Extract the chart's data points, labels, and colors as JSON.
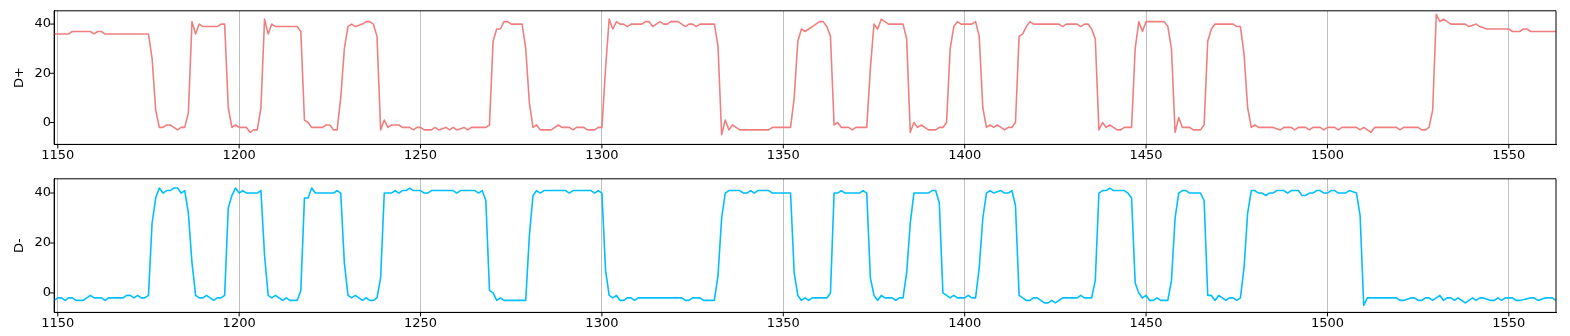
{
  "chart_data": [
    {
      "type": "line",
      "ylabel": "D+",
      "xlim": [
        1149,
        1563
      ],
      "ylim": [
        -8.9,
        45.4
      ],
      "xticks": [
        1150,
        1200,
        1250,
        1300,
        1350,
        1400,
        1450,
        1500,
        1550
      ],
      "yticks": [
        0,
        20,
        40
      ],
      "grid": "x",
      "legend": false,
      "series": [
        {
          "color": "#f08080",
          "x": [
            1149,
            1153,
            1154,
            1159,
            1160,
            1161,
            1162,
            1163,
            1175,
            1176,
            1177,
            1178,
            1179,
            1180,
            1181,
            1182,
            1183,
            1184,
            1185,
            1186,
            1187,
            1188,
            1189,
            1190,
            1194,
            1195,
            1196,
            1197,
            1198,
            1199,
            1200,
            1202,
            1203,
            1204,
            1205,
            1206,
            1207,
            1208,
            1209,
            1210,
            1216,
            1217,
            1218,
            1219,
            1220,
            1223,
            1224,
            1225,
            1226,
            1227,
            1228,
            1229,
            1230,
            1231,
            1232,
            1234,
            1235,
            1236,
            1237,
            1238,
            1239,
            1240,
            1241,
            1242,
            1244,
            1245,
            1247,
            1248,
            1249,
            1250,
            1251,
            1253,
            1254,
            1255,
            1257,
            1258,
            1259,
            1260,
            1262,
            1263,
            1264,
            1268,
            1269,
            1270,
            1271,
            1272,
            1273,
            1274,
            1275,
            1278,
            1279,
            1280,
            1281,
            1282,
            1283,
            1286,
            1288,
            1289,
            1291,
            1292,
            1293,
            1295,
            1296,
            1298,
            1299,
            1300,
            1301,
            1302,
            1303,
            1304,
            1305,
            1306,
            1307,
            1308,
            1311,
            1312,
            1313,
            1314,
            1315,
            1316,
            1317,
            1318,
            1319,
            1321,
            1322,
            1323,
            1324,
            1325,
            1326,
            1327,
            1331,
            1332,
            1333,
            1334,
            1335,
            1336,
            1337,
            1338,
            1346,
            1347,
            1352,
            1353,
            1354,
            1355,
            1356,
            1357,
            1358,
            1359,
            1360,
            1361,
            1362,
            1363,
            1364,
            1365,
            1366,
            1368,
            1369,
            1370,
            1373,
            1374,
            1375,
            1376,
            1377,
            1378,
            1379,
            1383,
            1384,
            1385,
            1386,
            1387,
            1388,
            1389,
            1390,
            1392,
            1393,
            1394,
            1395,
            1396,
            1397,
            1398,
            1399,
            1402,
            1403,
            1404,
            1405,
            1406,
            1407,
            1408,
            1409,
            1410,
            1411,
            1412,
            1413,
            1414,
            1415,
            1416,
            1417,
            1418,
            1419,
            1426,
            1427,
            1428,
            1431,
            1432,
            1433,
            1434,
            1435,
            1436,
            1437,
            1438,
            1439,
            1440,
            1441,
            1442,
            1443,
            1444,
            1446,
            1447,
            1448,
            1449,
            1450,
            1455,
            1456,
            1457,
            1458,
            1459,
            1460,
            1462,
            1463,
            1465,
            1466,
            1467,
            1468,
            1469,
            1474,
            1475,
            1476,
            1477,
            1478,
            1479,
            1480,
            1481,
            1485,
            1487,
            1488,
            1490,
            1491,
            1492,
            1494,
            1495,
            1496,
            1498,
            1499,
            1500,
            1502,
            1503,
            1504,
            1508,
            1509,
            1510,
            1511,
            1512,
            1513,
            1519,
            1520,
            1521,
            1525,
            1526,
            1527,
            1528,
            1529,
            1530,
            1531,
            1532,
            1533,
            1534,
            1538,
            1539,
            1541,
            1542,
            1544,
            1545,
            1550,
            1551,
            1553,
            1554,
            1555,
            1556,
            1563
          ],
          "values": [
            36,
            36,
            37,
            37,
            36,
            37,
            37,
            36,
            36,
            26,
            5,
            -2,
            -2,
            -1,
            -1,
            -2,
            -3,
            -2,
            -2,
            4,
            41,
            36,
            40,
            39,
            39,
            40,
            40,
            6,
            -2,
            -1,
            -2,
            -2,
            -4,
            -3,
            -3,
            6,
            42,
            36,
            40,
            39,
            39,
            37,
            1,
            0,
            -2,
            -2,
            -1,
            -1,
            -3,
            -3,
            10,
            30,
            39,
            40,
            39,
            40,
            41,
            41,
            40,
            35,
            -3,
            1,
            -2,
            -1,
            -1,
            -2,
            -2,
            -3,
            -2,
            -2,
            -3,
            -3,
            -2,
            -3,
            -2,
            -3,
            -2,
            -3,
            -2,
            -3,
            -2,
            -2,
            -1,
            33,
            38,
            38,
            41,
            41,
            40,
            40,
            30,
            8,
            -2,
            -1,
            -3,
            -3,
            -1,
            -2,
            -2,
            -3,
            -2,
            -2,
            -3,
            -3,
            -2,
            -2,
            22,
            42,
            38,
            41,
            40,
            40,
            39,
            40,
            40,
            41,
            41,
            39,
            40,
            41,
            40,
            40,
            41,
            41,
            40,
            39,
            40,
            40,
            39,
            40,
            40,
            31,
            -5,
            1,
            -3,
            -1,
            -2,
            -3,
            -3,
            -2,
            -2,
            10,
            33,
            38,
            37,
            38,
            39,
            40,
            41,
            41,
            39,
            35,
            -1,
            0,
            -2,
            -2,
            -3,
            -2,
            -2,
            22,
            40,
            38,
            42,
            41,
            40,
            40,
            34,
            -4,
            0,
            -2,
            -1,
            -2,
            -3,
            -3,
            -2,
            -2,
            0,
            30,
            39,
            41,
            40,
            40,
            41,
            35,
            6,
            -2,
            -1,
            -2,
            -1,
            -2,
            -3,
            -2,
            -2,
            0,
            35,
            36,
            39,
            41,
            40,
            40,
            39,
            40,
            40,
            39,
            40,
            40,
            38,
            34,
            -3,
            0,
            -2,
            -1,
            -2,
            -3,
            -3,
            -2,
            -2,
            30,
            41,
            37,
            41,
            41,
            39,
            30,
            -4,
            2,
            -2,
            -2,
            -3,
            -3,
            -1,
            33,
            38,
            40,
            40,
            39,
            39,
            28,
            6,
            -2,
            -1,
            -2,
            -2,
            -3,
            -2,
            -2,
            -3,
            -2,
            -2,
            -3,
            -2,
            -2,
            -3,
            -2,
            -2,
            -3,
            -2,
            -2,
            -3,
            -2,
            -3,
            -4,
            -2,
            -2,
            -3,
            -2,
            -2,
            -3,
            -3,
            -2,
            5,
            44,
            41,
            42,
            41,
            40,
            40,
            39,
            40,
            39,
            38,
            38,
            38,
            37,
            37,
            38,
            38,
            37,
            37
          ]
        }
      ]
    },
    {
      "type": "line",
      "ylabel": "D-",
      "xlim": [
        1149,
        1563
      ],
      "ylim": [
        -7.8,
        45.7
      ],
      "xticks": [
        1150,
        1200,
        1250,
        1300,
        1350,
        1400,
        1450,
        1500,
        1550
      ],
      "yticks": [
        0,
        20,
        40
      ],
      "grid": "x",
      "legend": false,
      "series": [
        {
          "color": "#00bfff",
          "x": [
            1149,
            1150,
            1151,
            1152,
            1153,
            1154,
            1155,
            1157,
            1158,
            1159,
            1160,
            1162,
            1163,
            1164,
            1168,
            1169,
            1170,
            1171,
            1172,
            1173,
            1174,
            1175,
            1176,
            1177,
            1178,
            1179,
            1180,
            1181,
            1182,
            1183,
            1184,
            1185,
            1186,
            1187,
            1188,
            1189,
            1190,
            1191,
            1192,
            1193,
            1194,
            1195,
            1196,
            1197,
            1198,
            1199,
            1200,
            1201,
            1202,
            1205,
            1206,
            1207,
            1208,
            1209,
            1210,
            1211,
            1212,
            1213,
            1214,
            1216,
            1217,
            1218,
            1219,
            1220,
            1221,
            1226,
            1227,
            1228,
            1229,
            1230,
            1231,
            1232,
            1233,
            1234,
            1235,
            1236,
            1237,
            1238,
            1239,
            1240,
            1242,
            1243,
            1244,
            1245,
            1246,
            1247,
            1248,
            1250,
            1251,
            1252,
            1253,
            1259,
            1260,
            1261,
            1265,
            1266,
            1267,
            1268,
            1269,
            1270,
            1271,
            1272,
            1273,
            1279,
            1280,
            1281,
            1282,
            1283,
            1284,
            1290,
            1291,
            1292,
            1297,
            1298,
            1299,
            1300,
            1301,
            1302,
            1303,
            1304,
            1305,
            1306,
            1307,
            1308,
            1309,
            1310,
            1322,
            1323,
            1324,
            1325,
            1327,
            1328,
            1331,
            1332,
            1333,
            1334,
            1335,
            1338,
            1339,
            1340,
            1341,
            1342,
            1343,
            1346,
            1347,
            1352,
            1353,
            1354,
            1355,
            1356,
            1357,
            1358,
            1362,
            1363,
            1364,
            1365,
            1366,
            1367,
            1371,
            1372,
            1373,
            1374,
            1375,
            1376,
            1377,
            1378,
            1380,
            1381,
            1382,
            1383,
            1384,
            1385,
            1386,
            1390,
            1391,
            1392,
            1393,
            1394,
            1395,
            1396,
            1397,
            1398,
            1400,
            1401,
            1402,
            1403,
            1404,
            1405,
            1406,
            1407,
            1408,
            1410,
            1411,
            1412,
            1413,
            1414,
            1415,
            1416,
            1417,
            1418,
            1419,
            1420,
            1421,
            1422,
            1423,
            1424,
            1425,
            1426,
            1427,
            1431,
            1432,
            1433,
            1435,
            1436,
            1437,
            1438,
            1439,
            1440,
            1441,
            1444,
            1445,
            1446,
            1447,
            1448,
            1449,
            1450,
            1451,
            1452,
            1453,
            1454,
            1456,
            1457,
            1458,
            1459,
            1460,
            1461,
            1462,
            1465,
            1466,
            1467,
            1468,
            1469,
            1470,
            1471,
            1472,
            1473,
            1474,
            1475,
            1476,
            1477,
            1478,
            1479,
            1480,
            1481,
            1482,
            1483,
            1484,
            1485,
            1486,
            1488,
            1489,
            1490,
            1492,
            1493,
            1494,
            1495,
            1496,
            1497,
            1498,
            1499,
            1500,
            1501,
            1502,
            1503,
            1505,
            1506,
            1508,
            1509,
            1510,
            1511,
            1515,
            1516,
            1518,
            1519,
            1520,
            1521,
            1523,
            1524,
            1525,
            1526,
            1527,
            1528,
            1529,
            1530,
            1531,
            1532,
            1533,
            1534,
            1535,
            1536,
            1537,
            1538,
            1539,
            1540,
            1541,
            1542,
            1543,
            1545,
            1546,
            1547,
            1548,
            1549,
            1551,
            1552,
            1553,
            1556,
            1557,
            1558,
            1560,
            1561,
            1562,
            1563
          ],
          "values": [
            -3,
            -2,
            -2,
            -3,
            -2,
            -2,
            -3,
            -3,
            -2,
            -1,
            -2,
            -2,
            -3,
            -2,
            -2,
            -1,
            -1,
            -2,
            -1,
            -2,
            -2,
            -1,
            28,
            38,
            42,
            40,
            41,
            41,
            42,
            42,
            40,
            41,
            32,
            12,
            -1,
            -2,
            -2,
            -1,
            -2,
            -3,
            -2,
            -2,
            -1,
            34,
            39,
            42,
            40,
            41,
            40,
            40,
            41,
            15,
            -1,
            -2,
            -1,
            -2,
            -3,
            -2,
            -3,
            -3,
            1,
            38,
            38,
            42,
            40,
            40,
            41,
            40,
            12,
            -1,
            -2,
            -1,
            -2,
            -3,
            -2,
            -3,
            -3,
            -2,
            6,
            40,
            40,
            41,
            40,
            41,
            41,
            42,
            41,
            41,
            40,
            40,
            41,
            41,
            40,
            41,
            41,
            40,
            41,
            37,
            1,
            0,
            -3,
            -2,
            -3,
            -3,
            23,
            39,
            41,
            40,
            41,
            41,
            40,
            41,
            41,
            40,
            41,
            40,
            9,
            -1,
            -2,
            -1,
            -3,
            -3,
            -2,
            -2,
            -3,
            -2,
            -2,
            -3,
            -3,
            -2,
            -2,
            -3,
            -3,
            7,
            30,
            40,
            41,
            41,
            40,
            40,
            41,
            40,
            41,
            41,
            40,
            40,
            8,
            -1,
            -3,
            -2,
            -3,
            -2,
            -2,
            0,
            40,
            40,
            41,
            40,
            40,
            41,
            40,
            6,
            -1,
            -3,
            -1,
            -2,
            -2,
            -3,
            -2,
            -2,
            8,
            28,
            40,
            40,
            41,
            41,
            36,
            0,
            -1,
            -2,
            -1,
            -2,
            -2,
            -1,
            -2,
            -2,
            10,
            30,
            40,
            41,
            40,
            41,
            40,
            40,
            41,
            35,
            -1,
            -2,
            -3,
            -3,
            -2,
            -2,
            -3,
            -4,
            -4,
            -3,
            -4,
            -3,
            -2,
            -2,
            -1,
            -2,
            -2,
            5,
            40,
            41,
            41,
            42,
            41,
            41,
            40,
            38,
            4,
            0,
            -2,
            -1,
            -3,
            -3,
            -2,
            -3,
            -3,
            5,
            30,
            40,
            41,
            41,
            40,
            40,
            37,
            -1,
            -1,
            -3,
            -1,
            -2,
            -3,
            -2,
            -2,
            -3,
            -2,
            10,
            32,
            41,
            41,
            40,
            40,
            39,
            40,
            40,
            41,
            41,
            40,
            41,
            41,
            39,
            39,
            40,
            40,
            41,
            41,
            40,
            40,
            41,
            41,
            40,
            40,
            41,
            40,
            31,
            -5,
            -2,
            -2,
            -2,
            -2,
            -2,
            -3,
            -3,
            -2,
            -2,
            -3,
            -3,
            -2,
            -2,
            -3,
            -2,
            -1,
            -3,
            -2,
            -2,
            -3,
            -2,
            -3,
            -4,
            -3,
            -2,
            -3,
            -2,
            -2,
            -3,
            -3,
            -2,
            -3,
            -2,
            -2,
            -3,
            -3,
            -2,
            -2,
            -3,
            -2,
            -2,
            -2,
            -3
          ]
        }
      ]
    }
  ]
}
